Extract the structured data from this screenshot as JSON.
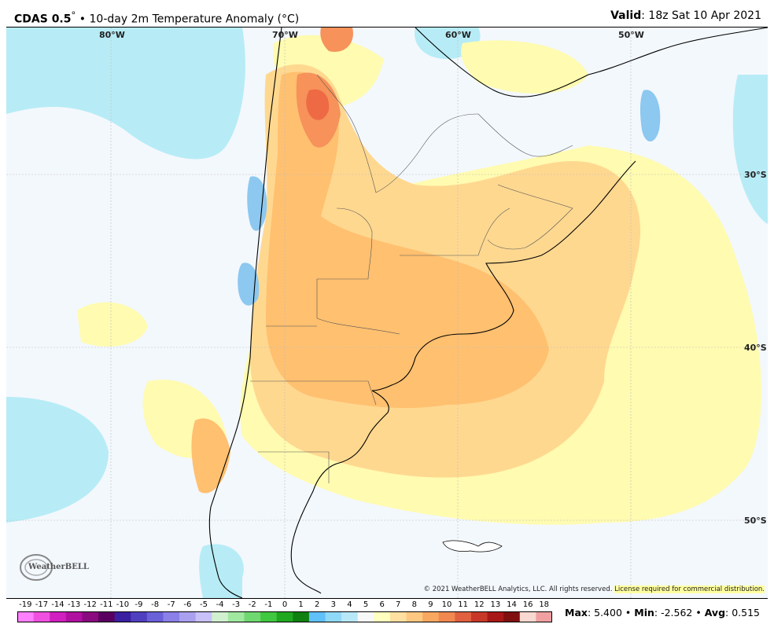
{
  "header": {
    "model": "CDAS 0.5",
    "description": "10-day 2m Temperature Anomaly (°C)",
    "valid_label": "Valid",
    "valid_value": "18z Sat 10 Apr 2021"
  },
  "map": {
    "longitude_labels": [
      "80°W",
      "70°W",
      "60°W",
      "50°W"
    ],
    "latitude_labels": [
      "30°S",
      "40°S",
      "50°S"
    ],
    "copyright": "© 2021 WeatherBELL Analytics, LLC. All rights reserved.",
    "license": "License required for commercial distribution.",
    "logo_text": "WeatherBELL"
  },
  "colorbar": {
    "ticks": [
      "-19",
      "-17",
      "-14",
      "-13",
      "-12",
      "-11",
      "-10",
      "-9",
      "-8",
      "-7",
      "-6",
      "-5",
      "-4",
      "-3",
      "-2",
      "-1",
      "0",
      "1",
      "2",
      "3",
      "4",
      "5",
      "6",
      "7",
      "8",
      "9",
      "10",
      "11",
      "12",
      "13",
      "14",
      "16",
      "18"
    ],
    "colors": [
      "#ff80ff",
      "#f050e0",
      "#d020c0",
      "#b010a0",
      "#8a0a80",
      "#5a0060",
      "#3a20a0",
      "#5040c0",
      "#6a60d8",
      "#8a80e8",
      "#aaa0f0",
      "#c8c0f8",
      "#d0f0d0",
      "#a0e8a0",
      "#70d870",
      "#40c840",
      "#20a820",
      "#108010",
      "#60c0f8",
      "#90d8f8",
      "#b8e8f8",
      "#f8f8f8",
      "#ffffc0",
      "#ffe0a0",
      "#ffc880",
      "#f8a860",
      "#f08850",
      "#e06040",
      "#c83828",
      "#a81818",
      "#801010",
      "#f8d8d0",
      "#f0a0a0"
    ]
  },
  "stats": {
    "max_label": "Max",
    "max_value": "5.400",
    "min_label": "Min",
    "min_value": "-2.562",
    "avg_label": "Avg",
    "avg_value": "0.515"
  }
}
